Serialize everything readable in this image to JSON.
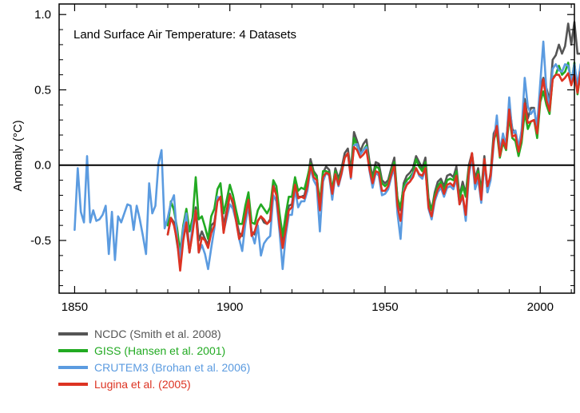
{
  "chart_data": {
    "type": "line",
    "title": "Land Surface Air Temperature: 4 Datasets",
    "xlabel": "",
    "ylabel": "Anomaly (°C)",
    "xlim": [
      1845,
      2011
    ],
    "ylim": [
      -0.85,
      1.07
    ],
    "x_ticks": [
      1850,
      1900,
      1950,
      2000
    ],
    "y_ticks": [
      1.0,
      0.5,
      0.0,
      -0.5
    ],
    "y_tick_labels": [
      "1.0",
      "0.5",
      "0.0",
      "-0.5"
    ],
    "zero_line": 0.0,
    "grid": false,
    "legend_position": "below-left",
    "series": [
      {
        "name": "NCDC (Smith et al. 2008)",
        "color": "#555555",
        "x_start": 1880,
        "values": [
          -0.46,
          -0.35,
          -0.38,
          -0.52,
          -0.64,
          -0.47,
          -0.41,
          -0.58,
          -0.43,
          -0.28,
          -0.5,
          -0.44,
          -0.49,
          -0.53,
          -0.4,
          -0.38,
          -0.23,
          -0.22,
          -0.4,
          -0.3,
          -0.19,
          -0.26,
          -0.36,
          -0.45,
          -0.47,
          -0.36,
          -0.26,
          -0.44,
          -0.46,
          -0.37,
          -0.34,
          -0.38,
          -0.39,
          -0.36,
          -0.13,
          -0.19,
          -0.38,
          -0.52,
          -0.4,
          -0.27,
          -0.26,
          -0.11,
          -0.21,
          -0.21,
          -0.2,
          -0.12,
          0.04,
          -0.04,
          -0.07,
          -0.3,
          -0.05,
          -0.01,
          -0.03,
          -0.17,
          -0.02,
          -0.09,
          -0.02,
          0.08,
          0.11,
          -0.04,
          0.22,
          0.16,
          0.09,
          0.14,
          0.17,
          0.02,
          -0.08,
          0.02,
          0.01,
          -0.1,
          -0.12,
          -0.1,
          -0.02,
          0.05,
          -0.22,
          -0.3,
          -0.12,
          -0.07,
          -0.05,
          -0.02,
          0.06,
          0.02,
          -0.02,
          0.05,
          -0.22,
          -0.3,
          -0.18,
          -0.11,
          -0.09,
          -0.14,
          -0.07,
          -0.06,
          -0.08,
          -0.01,
          -0.21,
          -0.11,
          -0.19,
          0.0,
          0.08,
          -0.09,
          -0.02,
          -0.17,
          0.06,
          -0.18,
          -0.05,
          0.21,
          0.26,
          0.08,
          0.19,
          0.14,
          0.4,
          0.24,
          0.21,
          0.1,
          0.22,
          0.44,
          0.31,
          0.38,
          0.38,
          0.24,
          0.52,
          0.58,
          0.51,
          0.43,
          0.7,
          0.73,
          0.8,
          0.74,
          0.79,
          0.94,
          0.8,
          0.95,
          0.74,
          0.74
        ],
        "draw_order": 0
      },
      {
        "name": "GISS (Hansen et al. 2001)",
        "color": "#22aa22",
        "x_start": 1880,
        "values": [
          -0.4,
          -0.24,
          -0.3,
          -0.42,
          -0.58,
          -0.4,
          -0.29,
          -0.44,
          -0.35,
          -0.08,
          -0.36,
          -0.34,
          -0.41,
          -0.49,
          -0.34,
          -0.29,
          -0.16,
          -0.12,
          -0.32,
          -0.23,
          -0.13,
          -0.2,
          -0.3,
          -0.39,
          -0.39,
          -0.27,
          -0.18,
          -0.38,
          -0.39,
          -0.3,
          -0.26,
          -0.29,
          -0.32,
          -0.28,
          -0.1,
          -0.14,
          -0.32,
          -0.47,
          -0.33,
          -0.21,
          -0.21,
          -0.08,
          -0.17,
          -0.15,
          -0.16,
          -0.08,
          0.01,
          -0.05,
          -0.08,
          -0.25,
          -0.04,
          -0.04,
          -0.05,
          -0.16,
          -0.04,
          -0.11,
          -0.04,
          0.05,
          0.08,
          -0.06,
          0.18,
          0.13,
          0.07,
          0.1,
          0.13,
          0.0,
          -0.1,
          -0.01,
          -0.02,
          -0.12,
          -0.14,
          -0.12,
          -0.04,
          0.02,
          -0.22,
          -0.28,
          -0.14,
          -0.1,
          -0.08,
          -0.05,
          0.04,
          -0.01,
          -0.04,
          0.02,
          -0.24,
          -0.3,
          -0.2,
          -0.14,
          -0.11,
          -0.17,
          -0.1,
          -0.09,
          -0.1,
          -0.04,
          -0.23,
          -0.14,
          -0.21,
          -0.02,
          0.05,
          -0.11,
          -0.04,
          -0.19,
          0.03,
          -0.18,
          -0.07,
          0.17,
          0.22,
          0.05,
          0.15,
          0.1,
          0.32,
          0.18,
          0.16,
          0.06,
          0.15,
          0.35,
          0.24,
          0.29,
          0.3,
          0.18,
          0.42,
          0.49,
          0.4,
          0.34,
          0.58,
          0.6,
          0.66,
          0.6,
          0.62,
          0.68,
          0.54,
          0.68,
          0.47,
          0.62
        ],
        "draw_order": 1
      },
      {
        "name": "CRUTEM3 (Brohan et al. 2006)",
        "color": "#5b9be0",
        "x_start": 1850,
        "values": [
          -0.43,
          -0.02,
          -0.31,
          -0.38,
          0.06,
          -0.38,
          -0.3,
          -0.37,
          -0.36,
          -0.33,
          -0.27,
          -0.59,
          -0.31,
          -0.63,
          -0.34,
          -0.38,
          -0.32,
          -0.26,
          -0.27,
          -0.43,
          -0.27,
          -0.36,
          -0.47,
          -0.59,
          -0.12,
          -0.32,
          -0.27,
          0.01,
          0.1,
          -0.42,
          -0.35,
          -0.25,
          -0.2,
          -0.49,
          -0.62,
          -0.42,
          -0.32,
          -0.58,
          -0.39,
          -0.3,
          -0.58,
          -0.53,
          -0.59,
          -0.69,
          -0.55,
          -0.42,
          -0.21,
          -0.22,
          -0.44,
          -0.35,
          -0.26,
          -0.29,
          -0.37,
          -0.49,
          -0.57,
          -0.39,
          -0.27,
          -0.45,
          -0.52,
          -0.4,
          -0.6,
          -0.52,
          -0.49,
          -0.47,
          -0.2,
          -0.24,
          -0.44,
          -0.69,
          -0.47,
          -0.33,
          -0.33,
          -0.16,
          -0.28,
          -0.24,
          -0.24,
          -0.17,
          -0.02,
          -0.1,
          -0.14,
          -0.44,
          -0.11,
          -0.05,
          -0.07,
          -0.23,
          -0.06,
          -0.14,
          -0.06,
          0.05,
          0.08,
          -0.09,
          0.13,
          0.14,
          0.07,
          0.1,
          0.12,
          -0.04,
          -0.15,
          -0.05,
          -0.07,
          -0.2,
          -0.19,
          -0.16,
          -0.08,
          -0.02,
          -0.32,
          -0.49,
          -0.17,
          -0.12,
          -0.11,
          -0.06,
          -0.02,
          -0.07,
          -0.09,
          -0.02,
          -0.29,
          -0.36,
          -0.24,
          -0.18,
          -0.15,
          -0.21,
          -0.15,
          -0.14,
          -0.16,
          -0.09,
          -0.26,
          -0.21,
          -0.37,
          -0.07,
          0.06,
          -0.16,
          -0.09,
          -0.25,
          0.02,
          -0.18,
          -0.1,
          0.14,
          0.33,
          0.09,
          0.21,
          0.12,
          0.45,
          0.21,
          0.23,
          0.12,
          0.23,
          0.58,
          0.39,
          0.34,
          0.37,
          0.26,
          0.55,
          0.82,
          0.49,
          0.39,
          0.64,
          0.67,
          0.63,
          0.62,
          0.67,
          0.66,
          0.55,
          0.67,
          0.53,
          0.67
        ],
        "draw_order": 2
      },
      {
        "name": "Lugina et al. (2005)",
        "color": "#dd3322",
        "x_start": 1880,
        "values": [
          -0.46,
          -0.35,
          -0.4,
          -0.5,
          -0.7,
          -0.5,
          -0.38,
          -0.58,
          -0.45,
          -0.3,
          -0.58,
          -0.48,
          -0.5,
          -0.55,
          -0.45,
          -0.4,
          -0.24,
          -0.21,
          -0.45,
          -0.32,
          -0.2,
          -0.24,
          -0.37,
          -0.49,
          -0.45,
          -0.34,
          -0.23,
          -0.47,
          -0.44,
          -0.37,
          -0.34,
          -0.36,
          -0.39,
          -0.37,
          -0.14,
          -0.2,
          -0.4,
          -0.55,
          -0.43,
          -0.3,
          -0.28,
          -0.13,
          -0.22,
          -0.21,
          -0.22,
          -0.14,
          0.0,
          -0.08,
          -0.1,
          -0.3,
          -0.08,
          -0.05,
          -0.06,
          -0.19,
          -0.06,
          -0.13,
          -0.05,
          0.05,
          0.08,
          -0.08,
          0.12,
          0.1,
          0.05,
          0.07,
          0.1,
          -0.03,
          -0.12,
          -0.04,
          -0.05,
          -0.17,
          -0.17,
          -0.14,
          -0.06,
          0.0,
          -0.27,
          -0.37,
          -0.18,
          -0.13,
          -0.11,
          -0.08,
          -0.02,
          -0.06,
          -0.07,
          -0.02,
          -0.28,
          -0.34,
          -0.22,
          -0.16,
          -0.13,
          -0.19,
          -0.13,
          -0.12,
          -0.14,
          -0.07,
          -0.26,
          -0.2,
          -0.33,
          -0.04,
          0.08,
          -0.12,
          -0.06,
          -0.23,
          0.04,
          -0.14,
          -0.07,
          0.16,
          0.26,
          0.06,
          0.17,
          0.11,
          0.37,
          0.19,
          0.2,
          0.09,
          0.18,
          0.41,
          0.28,
          0.29,
          0.3,
          0.21,
          0.45,
          0.57,
          0.43,
          0.36,
          0.57,
          0.6,
          0.6,
          0.56,
          0.58,
          0.61,
          0.53,
          0.6,
          0.48,
          0.62
        ],
        "draw_order": 3
      }
    ]
  }
}
